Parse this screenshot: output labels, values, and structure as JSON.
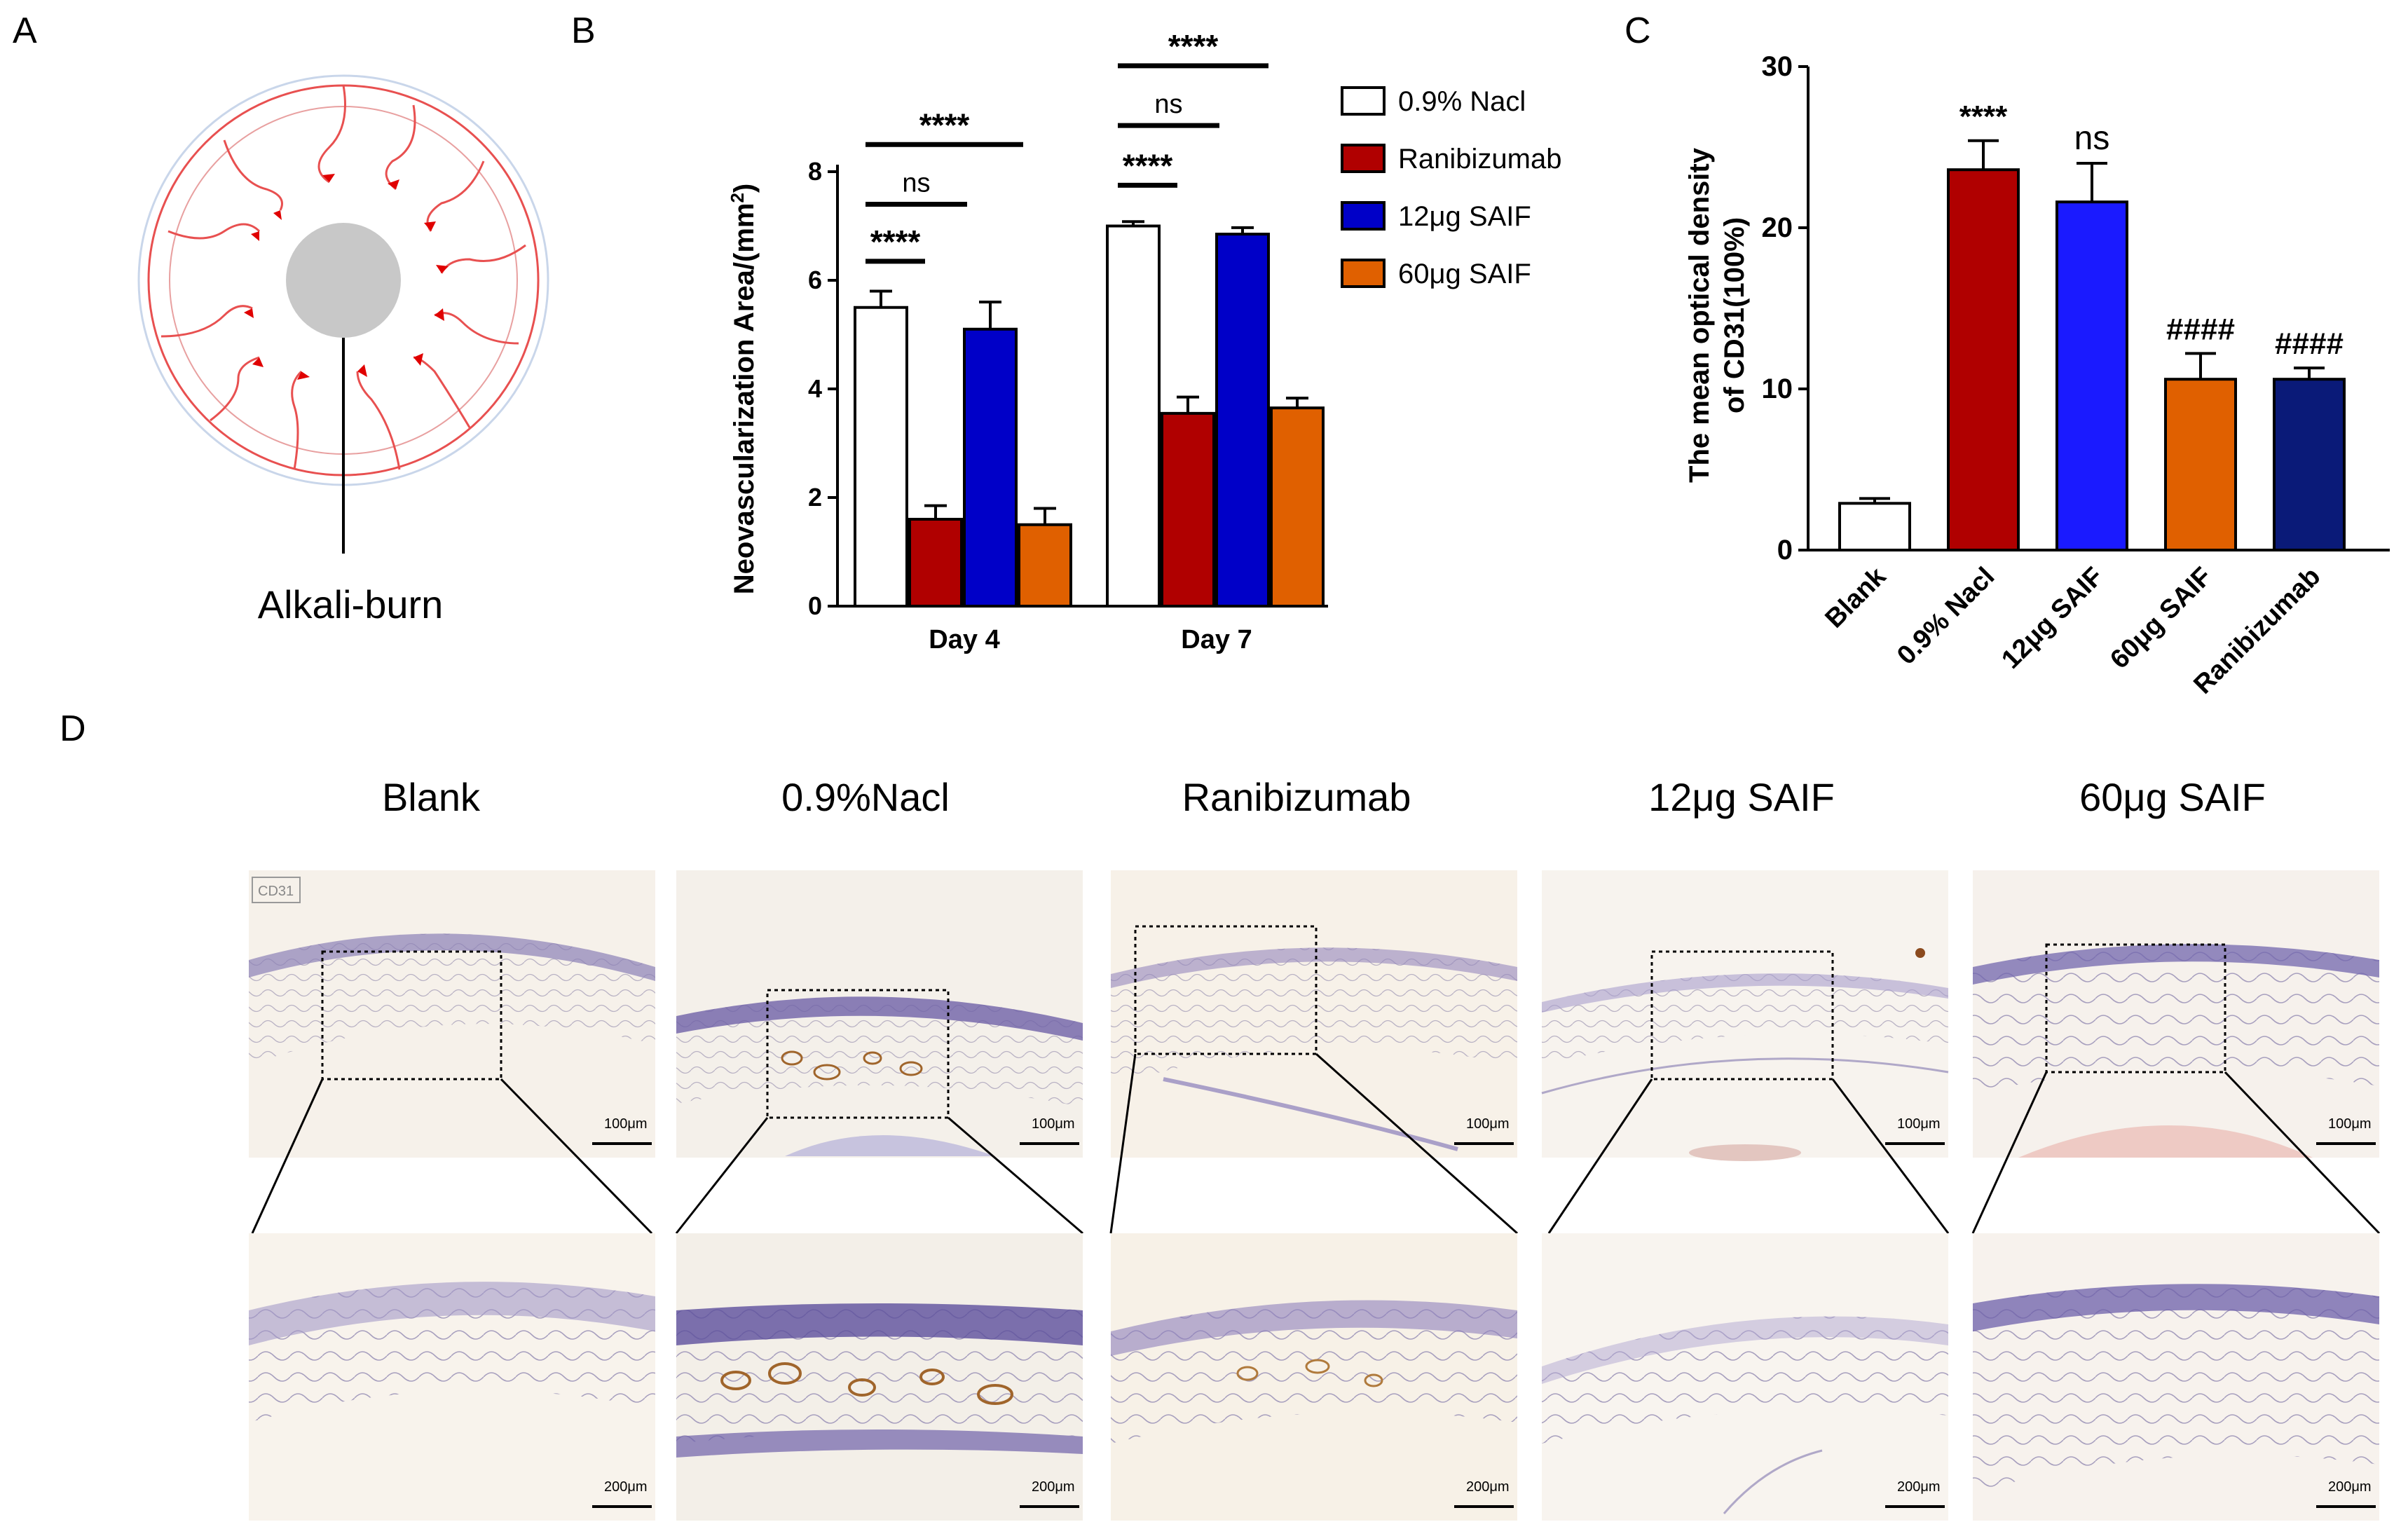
{
  "panels": {
    "a": "A",
    "b": "B",
    "c": "C",
    "d": "D"
  },
  "panelA": {
    "label": "Alkali-burn"
  },
  "colors": {
    "white": "#ffffff",
    "red": "#b00000",
    "blue": "#0000c8",
    "orange": "#e06000",
    "navy": "#0a1a78",
    "blueC": "#1a1aff"
  },
  "chart_data": [
    {
      "type": "bar",
      "id": "B",
      "ylabel": "Neovascularization Area/(mm²)",
      "ylabel_main": "Neovascularization Area/(mm",
      "ylabel_sup": "2",
      "ylabel_end": ")",
      "ylim": [
        0,
        8
      ],
      "yticks": [
        "0",
        "2",
        "4",
        "6",
        "8"
      ],
      "categories": [
        "Day 4",
        "Day 7"
      ],
      "series": [
        {
          "name": "0.9% Nacl",
          "values": [
            5.5,
            7.0
          ],
          "errors": [
            0.3,
            0.08
          ]
        },
        {
          "name": "Ranibizumab",
          "values": [
            1.6,
            3.55
          ],
          "errors": [
            0.25,
            0.3
          ]
        },
        {
          "name": "12μg SAIF",
          "values": [
            5.1,
            6.85
          ],
          "errors": [
            0.5,
            0.12
          ]
        },
        {
          "name": "60μg SAIF",
          "values": [
            1.5,
            3.65
          ],
          "errors": [
            0.3,
            0.18
          ]
        }
      ],
      "significance": {
        "day4": [
          "****",
          "ns",
          "****"
        ],
        "day7": [
          "****",
          "ns",
          "****"
        ]
      }
    },
    {
      "type": "bar",
      "id": "C",
      "ylabel_line1": "The mean optical density",
      "ylabel_line2": "of CD31(100%)",
      "ylim": [
        0,
        30
      ],
      "yticks": [
        "0",
        "10",
        "20",
        "30"
      ],
      "categories": [
        "Blank",
        "0.9% Nacl",
        "12μg SAIF",
        "60μg SAIF",
        "Ranibizumab"
      ],
      "values": [
        2.9,
        23.6,
        21.6,
        10.6,
        10.6
      ],
      "errors": [
        0.3,
        1.8,
        2.4,
        1.6,
        0.7
      ],
      "annotations": [
        "",
        "****",
        "ns",
        "####",
        "####"
      ]
    }
  ],
  "panelD": {
    "groups": [
      "Blank",
      "0.9%Nacl",
      "Ranibizumab",
      "12μg SAIF",
      "60μg SAIF"
    ],
    "stain_label": "CD31",
    "scale_top": "100μm",
    "scale_bottom": "200μm"
  }
}
